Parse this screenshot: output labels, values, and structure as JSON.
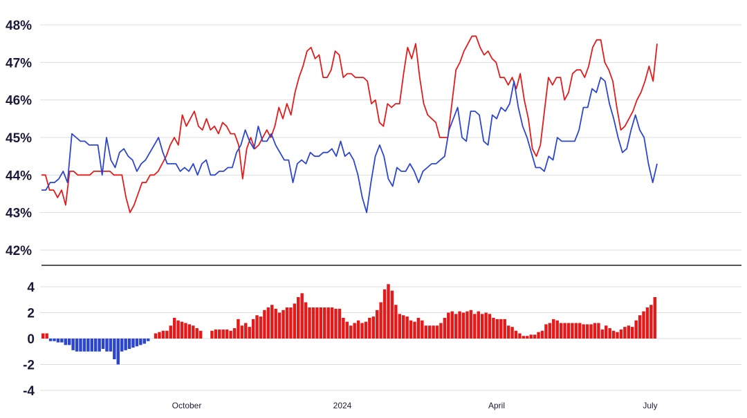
{
  "chart_data": [
    {
      "type": "line",
      "yticks": [
        "48%",
        "47%",
        "46%",
        "45%",
        "44%",
        "43%",
        "42%"
      ],
      "ylim": [
        42,
        48
      ],
      "grid": true,
      "colors": [
        "#e41a1a",
        "#2b45cc"
      ],
      "series": [
        {
          "color": "#e41a1a",
          "values": [
            44.0,
            44.0,
            43.6,
            43.6,
            43.4,
            43.6,
            43.2,
            44.1,
            44.1,
            44.0,
            44.0,
            44.0,
            44.0,
            44.1,
            44.1,
            44.1,
            44.1,
            44.1,
            44.0,
            44.0,
            44.0,
            43.4,
            43.0,
            43.2,
            43.5,
            43.8,
            43.8,
            44.0,
            44.0,
            44.1,
            44.3,
            44.5,
            44.8,
            45.0,
            44.8,
            45.6,
            45.3,
            45.5,
            45.7,
            45.3,
            45.2,
            45.5,
            45.2,
            45.3,
            45.1,
            45.4,
            45.3,
            45.1,
            45.1,
            44.8,
            43.9,
            44.7,
            45.0,
            44.7,
            44.8,
            45.0,
            45.2,
            45.0,
            45.3,
            45.8,
            45.5,
            45.9,
            45.6,
            46.2,
            46.6,
            46.9,
            47.3,
            47.4,
            47.1,
            47.2,
            46.6,
            46.6,
            46.8,
            47.3,
            47.2,
            46.6,
            46.7,
            46.7,
            46.6,
            46.6,
            46.6,
            46.5,
            45.9,
            46.0,
            45.4,
            45.3,
            45.9,
            45.8,
            45.9,
            45.9,
            46.7,
            47.4,
            47.1,
            47.5,
            46.6,
            45.9,
            45.6,
            45.5,
            45.4,
            45.0,
            45.0,
            45.0,
            45.9,
            46.8,
            47.0,
            47.3,
            47.5,
            47.7,
            47.7,
            47.4,
            47.2,
            47.3,
            47.1,
            47.0,
            46.6,
            46.6,
            46.4,
            46.6,
            46.3,
            46.7,
            46.0,
            45.5,
            44.7,
            44.5,
            44.8,
            45.7,
            46.6,
            46.4,
            46.6,
            46.6,
            46.0,
            46.2,
            46.7,
            46.8,
            46.8,
            46.6,
            46.9,
            47.4,
            47.6,
            47.6,
            47.0,
            46.8,
            46.5,
            45.8,
            45.2,
            45.3,
            45.5,
            45.7,
            46.0,
            46.2,
            46.5,
            46.9,
            46.5,
            47.5
          ]
        },
        {
          "color": "#2b45cc",
          "values": [
            43.6,
            43.6,
            43.8,
            43.8,
            43.9,
            44.1,
            43.8,
            45.1,
            45.0,
            44.9,
            44.9,
            44.8,
            44.8,
            44.8,
            44.0,
            45.0,
            44.4,
            44.2,
            44.6,
            44.7,
            44.5,
            44.4,
            44.1,
            44.3,
            44.4,
            44.6,
            44.8,
            45.0,
            44.6,
            44.3,
            44.3,
            44.3,
            44.1,
            44.2,
            44.1,
            44.3,
            44.0,
            44.3,
            44.4,
            44.0,
            44.0,
            44.1,
            44.1,
            44.2,
            44.2,
            44.6,
            44.8,
            45.2,
            44.9,
            44.7,
            45.3,
            44.9,
            44.9,
            45.1,
            44.8,
            44.6,
            44.4,
            44.4,
            43.8,
            44.3,
            44.4,
            44.3,
            44.6,
            44.5,
            44.5,
            44.6,
            44.6,
            44.7,
            44.5,
            44.9,
            44.5,
            44.6,
            44.4,
            44.0,
            43.4,
            43.0,
            43.8,
            44.5,
            44.8,
            44.5,
            43.9,
            43.7,
            44.2,
            44.1,
            44.1,
            44.3,
            44.1,
            43.8,
            44.1,
            44.2,
            44.3,
            44.3,
            44.4,
            44.5,
            45.2,
            45.5,
            45.8,
            45.0,
            44.9,
            45.7,
            45.7,
            45.6,
            44.9,
            44.8,
            45.6,
            45.5,
            45.8,
            45.7,
            45.9,
            46.5,
            45.8,
            45.3,
            45.0,
            44.6,
            44.2,
            44.2,
            44.1,
            44.5,
            44.4,
            45.0,
            44.9,
            44.9,
            44.9,
            44.9,
            45.2,
            45.8,
            45.8,
            46.3,
            46.2,
            46.6,
            46.5,
            45.9,
            45.5,
            45.0,
            44.6,
            44.7,
            45.2,
            45.6,
            45.2,
            45.0,
            44.3,
            43.8,
            44.3
          ]
        }
      ]
    },
    {
      "type": "bar",
      "xticks": [
        "October",
        "2024",
        "April",
        "July"
      ],
      "yticks": [
        "4",
        "2",
        "0",
        "-2",
        "-4"
      ],
      "ylim": [
        -4,
        4
      ],
      "grid": true,
      "colors": {
        "positive": "#e41a1a",
        "negative": "#2b45cc"
      },
      "values": [
        0.4,
        0.4,
        -0.2,
        -0.2,
        -0.3,
        -0.3,
        -0.5,
        -0.5,
        -0.9,
        -1.0,
        -1.0,
        -1.0,
        -1.0,
        -1.0,
        -1.0,
        -1.0,
        -0.8,
        -1.0,
        -1.0,
        -1.6,
        -2.0,
        -1.0,
        -0.9,
        -0.8,
        -0.7,
        -0.6,
        -0.5,
        -0.4,
        -0.2,
        0.0,
        0.4,
        0.5,
        0.6,
        0.6,
        1.0,
        1.6,
        1.4,
        1.3,
        1.2,
        1.1,
        1.0,
        0.8,
        0.6,
        0.0,
        0.0,
        0.6,
        0.7,
        0.7,
        0.7,
        0.7,
        0.6,
        0.8,
        1.5,
        1.0,
        1.2,
        0.9,
        1.5,
        1.8,
        1.7,
        2.2,
        2.4,
        2.6,
        2.3,
        2.0,
        2.2,
        2.4,
        2.4,
        2.7,
        3.2,
        3.5,
        2.8,
        2.4,
        2.4,
        2.4,
        2.4,
        2.4,
        2.4,
        2.4,
        2.3,
        2.3,
        1.6,
        1.3,
        1.0,
        1.2,
        1.4,
        1.2,
        1.3,
        1.6,
        1.7,
        2.2,
        2.8,
        3.8,
        4.2,
        3.7,
        2.6,
        1.9,
        1.8,
        1.7,
        1.4,
        1.3,
        1.6,
        1.4,
        1.0,
        1.0,
        1.0,
        1.0,
        1.2,
        1.6,
        2.0,
        2.1,
        1.9,
        2.1,
        2.0,
        2.1,
        2.2,
        1.9,
        2.1,
        1.9,
        2.0,
        1.9,
        1.6,
        1.5,
        1.5,
        1.5,
        1.0,
        0.9,
        0.6,
        0.4,
        0.2,
        0.2,
        0.3,
        0.3,
        0.5,
        0.6,
        1.1,
        1.2,
        1.5,
        1.4,
        1.2,
        1.2,
        1.2,
        1.2,
        1.2,
        1.2,
        1.1,
        1.1,
        1.1,
        1.2,
        1.2,
        0.7,
        1.0,
        0.8,
        0.6,
        0.5,
        0.7,
        0.9,
        1.0,
        0.9,
        1.4,
        1.8,
        2.1,
        2.4,
        2.6,
        3.2
      ]
    }
  ]
}
